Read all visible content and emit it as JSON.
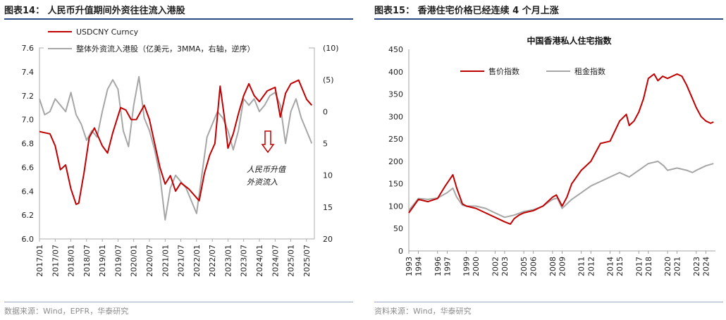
{
  "left": {
    "figure_title": "图表14： 人民币升值期间外资往往流入港股",
    "source": "数据来源：Wind，EPFR，华泰研究"
  },
  "right": {
    "figure_title": "图表15： 香港住宅价格已经连续 4 个月上涨",
    "source": "资料来源：Wind，华泰研究"
  },
  "colors": {
    "red": "#c00000",
    "gray": "#a6a6a6",
    "accent": "#2b4b84"
  },
  "chart_data": [
    {
      "type": "line",
      "title": "",
      "legend_placement": "top-left",
      "x_tick_labels": [
        "2017/01",
        "2017/07",
        "2018/01",
        "2018/07",
        "2019/01",
        "2019/07",
        "2020/01",
        "2020/07",
        "2021/01",
        "2021/07",
        "2022/01",
        "2022/07",
        "2023/01",
        "2023/07",
        "2024/01",
        "2024/07",
        "2025/01",
        "2025/07"
      ],
      "ylim_left": [
        6.0,
        7.6
      ],
      "yticks_left": [
        "6.0",
        "6.2",
        "6.4",
        "6.6",
        "6.8",
        "7.0",
        "7.2",
        "7.4",
        "7.6"
      ],
      "ylim_right": [
        20,
        -10
      ],
      "yticks_right": [
        "20",
        "15",
        "10",
        "5",
        "0",
        "(5)",
        "(10)"
      ],
      "annotation": {
        "lines": [
          "人民币升值",
          "外资流入"
        ],
        "arrow": "down"
      },
      "series": [
        {
          "name": "USDCNY Curncy",
          "axis": "left",
          "color": "#c00000",
          "points": [
            [
              "2017/01",
              6.9
            ],
            [
              "2017/03",
              6.89
            ],
            [
              "2017/05",
              6.88
            ],
            [
              "2017/07",
              6.78
            ],
            [
              "2017/09",
              6.58
            ],
            [
              "2017/11",
              6.62
            ],
            [
              "2018/01",
              6.42
            ],
            [
              "2018/03",
              6.29
            ],
            [
              "2018/04",
              6.3
            ],
            [
              "2018/06",
              6.55
            ],
            [
              "2018/08",
              6.85
            ],
            [
              "2018/10",
              6.93
            ],
            [
              "2019/01",
              6.78
            ],
            [
              "2019/03",
              6.72
            ],
            [
              "2019/05",
              6.89
            ],
            [
              "2019/08",
              7.1
            ],
            [
              "2019/10",
              7.08
            ],
            [
              "2019/12",
              7.0
            ],
            [
              "2020/02",
              7.0
            ],
            [
              "2020/05",
              7.12
            ],
            [
              "2020/07",
              7.0
            ],
            [
              "2020/09",
              6.8
            ],
            [
              "2020/11",
              6.6
            ],
            [
              "2021/01",
              6.46
            ],
            [
              "2021/03",
              6.53
            ],
            [
              "2021/05",
              6.4
            ],
            [
              "2021/07",
              6.47
            ],
            [
              "2021/10",
              6.42
            ],
            [
              "2021/12",
              6.37
            ],
            [
              "2022/02",
              6.32
            ],
            [
              "2022/04",
              6.55
            ],
            [
              "2022/06",
              6.7
            ],
            [
              "2022/08",
              6.8
            ],
            [
              "2022/10",
              7.28
            ],
            [
              "2022/12",
              6.96
            ],
            [
              "2023/01",
              6.76
            ],
            [
              "2023/03",
              6.88
            ],
            [
              "2023/05",
              7.05
            ],
            [
              "2023/07",
              7.2
            ],
            [
              "2023/09",
              7.3
            ],
            [
              "2023/11",
              7.2
            ],
            [
              "2024/01",
              7.15
            ],
            [
              "2024/04",
              7.24
            ],
            [
              "2024/07",
              7.27
            ],
            [
              "2024/09",
              7.02
            ],
            [
              "2024/11",
              7.22
            ],
            [
              "2025/01",
              7.3
            ],
            [
              "2025/04",
              7.33
            ],
            [
              "2025/07",
              7.17
            ],
            [
              "2025/09",
              7.12
            ]
          ]
        },
        {
          "name": "整体外资流入港股（亿美元，3MMA，右轴，逆序）",
          "axis": "right",
          "color": "#a6a6a6",
          "points": [
            [
              "2017/01",
              -2.0
            ],
            [
              "2017/03",
              0.5
            ],
            [
              "2017/05",
              0.0
            ],
            [
              "2017/07",
              -2.0
            ],
            [
              "2017/09",
              -1.0
            ],
            [
              "2017/11",
              0.0
            ],
            [
              "2018/01",
              -3.0
            ],
            [
              "2018/03",
              0.5
            ],
            [
              "2018/05",
              2.0
            ],
            [
              "2018/07",
              4.5
            ],
            [
              "2018/09",
              3.0
            ],
            [
              "2018/11",
              4.0
            ],
            [
              "2019/01",
              0.0
            ],
            [
              "2019/03",
              -3.5
            ],
            [
              "2019/05",
              -5.0
            ],
            [
              "2019/07",
              -3.5
            ],
            [
              "2019/09",
              3.0
            ],
            [
              "2019/11",
              5.5
            ],
            [
              "2020/01",
              -1.0
            ],
            [
              "2020/03",
              -5.5
            ],
            [
              "2020/05",
              1.0
            ],
            [
              "2020/07",
              3.0
            ],
            [
              "2020/09",
              6.0
            ],
            [
              "2020/11",
              10.0
            ],
            [
              "2021/01",
              17.0
            ],
            [
              "2021/03",
              12.0
            ],
            [
              "2021/05",
              10.0
            ],
            [
              "2021/07",
              11.0
            ],
            [
              "2021/09",
              12.0
            ],
            [
              "2021/11",
              14.0
            ],
            [
              "2022/01",
              16.0
            ],
            [
              "2022/03",
              10.0
            ],
            [
              "2022/05",
              4.0
            ],
            [
              "2022/07",
              2.0
            ],
            [
              "2022/09",
              0.0
            ],
            [
              "2022/11",
              1.0
            ],
            [
              "2023/01",
              3.0
            ],
            [
              "2023/03",
              6.0
            ],
            [
              "2023/05",
              3.0
            ],
            [
              "2023/07",
              -2.0
            ],
            [
              "2023/09",
              -1.0
            ],
            [
              "2023/11",
              -2.0
            ],
            [
              "2024/01",
              0.0
            ],
            [
              "2024/03",
              -1.0
            ],
            [
              "2024/05",
              -2.5
            ],
            [
              "2024/07",
              -3.0
            ],
            [
              "2024/09",
              -1.0
            ],
            [
              "2024/11",
              5.0
            ],
            [
              "2025/01",
              0.0
            ],
            [
              "2025/03",
              -2.0
            ],
            [
              "2025/05",
              1.0
            ],
            [
              "2025/07",
              3.0
            ],
            [
              "2025/09",
              5.0
            ]
          ]
        }
      ]
    },
    {
      "type": "line",
      "title": "中国香港私人住宅指数",
      "legend_placement": "top-left",
      "x_tick_labels": [
        "1993",
        "1994",
        "1996",
        "1997",
        "1999",
        "2000",
        "2002",
        "2003",
        "2005",
        "2006",
        "2008",
        "2009",
        "2011",
        "2012",
        "2014",
        "2015",
        "2017",
        "2018",
        "2020",
        "2021",
        "2023",
        "2024"
      ],
      "ylim": [
        0,
        450
      ],
      "yticks": [
        "0",
        "50",
        "100",
        "150",
        "200",
        "250",
        "300",
        "350",
        "400",
        "450"
      ],
      "series": [
        {
          "name": "售价指数",
          "color": "#c00000",
          "points": [
            [
              1993.0,
              85
            ],
            [
              1994.0,
              115
            ],
            [
              1995.0,
              110
            ],
            [
              1996.0,
              117
            ],
            [
              1996.8,
              145
            ],
            [
              1997.6,
              170
            ],
            [
              1998.0,
              140
            ],
            [
              1998.6,
              105
            ],
            [
              1999.0,
              100
            ],
            [
              2000.0,
              95
            ],
            [
              2001.0,
              85
            ],
            [
              2002.0,
              75
            ],
            [
              2003.0,
              65
            ],
            [
              2003.6,
              60
            ],
            [
              2004.0,
              72
            ],
            [
              2004.5,
              80
            ],
            [
              2005.0,
              85
            ],
            [
              2006.0,
              90
            ],
            [
              2007.0,
              100
            ],
            [
              2008.0,
              120
            ],
            [
              2008.4,
              125
            ],
            [
              2009.0,
              100
            ],
            [
              2009.5,
              120
            ],
            [
              2010.0,
              150
            ],
            [
              2011.0,
              180
            ],
            [
              2012.0,
              200
            ],
            [
              2013.0,
              240
            ],
            [
              2014.0,
              245
            ],
            [
              2015.0,
              290
            ],
            [
              2015.7,
              305
            ],
            [
              2016.0,
              280
            ],
            [
              2016.5,
              290
            ],
            [
              2017.0,
              310
            ],
            [
              2017.5,
              340
            ],
            [
              2018.0,
              385
            ],
            [
              2018.6,
              395
            ],
            [
              2019.0,
              380
            ],
            [
              2019.5,
              390
            ],
            [
              2020.0,
              385
            ],
            [
              2021.0,
              395
            ],
            [
              2021.5,
              390
            ],
            [
              2022.0,
              370
            ],
            [
              2022.5,
              345
            ],
            [
              2023.0,
              320
            ],
            [
              2023.5,
              300
            ],
            [
              2024.0,
              290
            ],
            [
              2024.5,
              285
            ],
            [
              2024.8,
              288
            ]
          ]
        },
        {
          "name": "租金指数",
          "color": "#a6a6a6",
          "points": [
            [
              1993.0,
              90
            ],
            [
              1994.0,
              117
            ],
            [
              1995.0,
              115
            ],
            [
              1996.0,
              118
            ],
            [
              1997.0,
              130
            ],
            [
              1997.6,
              140
            ],
            [
              1998.0,
              120
            ],
            [
              1998.6,
              102
            ],
            [
              1999.0,
              100
            ],
            [
              2000.0,
              100
            ],
            [
              2001.0,
              95
            ],
            [
              2002.0,
              85
            ],
            [
              2003.0,
              75
            ],
            [
              2004.0,
              80
            ],
            [
              2005.0,
              88
            ],
            [
              2006.0,
              92
            ],
            [
              2007.0,
              100
            ],
            [
              2008.0,
              115
            ],
            [
              2008.5,
              118
            ],
            [
              2009.0,
              95
            ],
            [
              2010.0,
              115
            ],
            [
              2011.0,
              130
            ],
            [
              2012.0,
              145
            ],
            [
              2013.0,
              155
            ],
            [
              2014.0,
              165
            ],
            [
              2015.0,
              175
            ],
            [
              2016.0,
              165
            ],
            [
              2017.0,
              180
            ],
            [
              2018.0,
              195
            ],
            [
              2019.0,
              200
            ],
            [
              2019.6,
              190
            ],
            [
              2020.0,
              180
            ],
            [
              2021.0,
              185
            ],
            [
              2022.0,
              180
            ],
            [
              2022.6,
              175
            ],
            [
              2023.0,
              180
            ],
            [
              2024.0,
              190
            ],
            [
              2024.8,
              195
            ]
          ]
        }
      ]
    }
  ]
}
